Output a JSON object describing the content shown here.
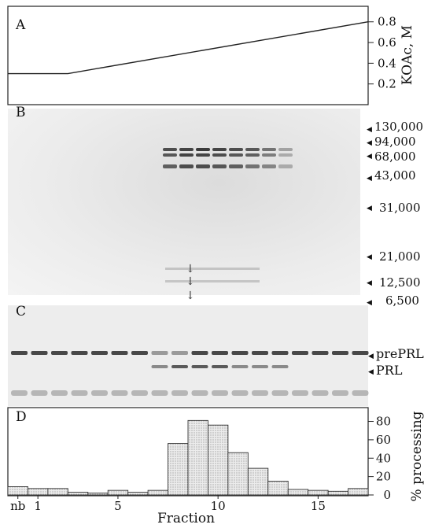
{
  "panels": {
    "a": {
      "letter": "A",
      "axis_label": "KOAc, M",
      "ticks": [
        "0.8",
        "0.6",
        "0.4",
        "0.2"
      ]
    },
    "b": {
      "letter": "B",
      "markers": [
        "130,000",
        "94,000",
        "68,000",
        "43,000",
        "31,000",
        "21,000",
        "12,500",
        "6,500"
      ]
    },
    "c": {
      "letter": "C",
      "labels": [
        "prePRL",
        "PRL"
      ]
    },
    "d": {
      "letter": "D",
      "axis_label": "% processing",
      "yticks": [
        "80",
        "60",
        "40",
        "20",
        "0"
      ],
      "xticks": [
        "nb",
        "1",
        "5",
        "10",
        "15"
      ],
      "xlabel": "Fraction"
    }
  },
  "chart_data": [
    {
      "type": "line",
      "panel": "A",
      "x": [
        0,
        3,
        18
      ],
      "y": [
        0.3,
        0.3,
        0.8
      ],
      "ylabel": "KOAc, M",
      "ylim": [
        0,
        0.95
      ]
    },
    {
      "type": "bar",
      "panel": "D",
      "categories": [
        "nb",
        "1",
        "2",
        "3",
        "4",
        "5",
        "6",
        "7",
        "8",
        "9",
        "10",
        "11",
        "12",
        "13",
        "14",
        "15",
        "16",
        "17"
      ],
      "values": [
        9,
        7,
        7,
        3,
        2,
        5,
        3,
        5,
        56,
        81,
        76,
        46,
        29,
        15,
        6,
        5,
        4,
        7
      ],
      "xlabel": "Fraction",
      "ylabel": "% processing",
      "ylim": [
        0,
        95
      ]
    }
  ]
}
